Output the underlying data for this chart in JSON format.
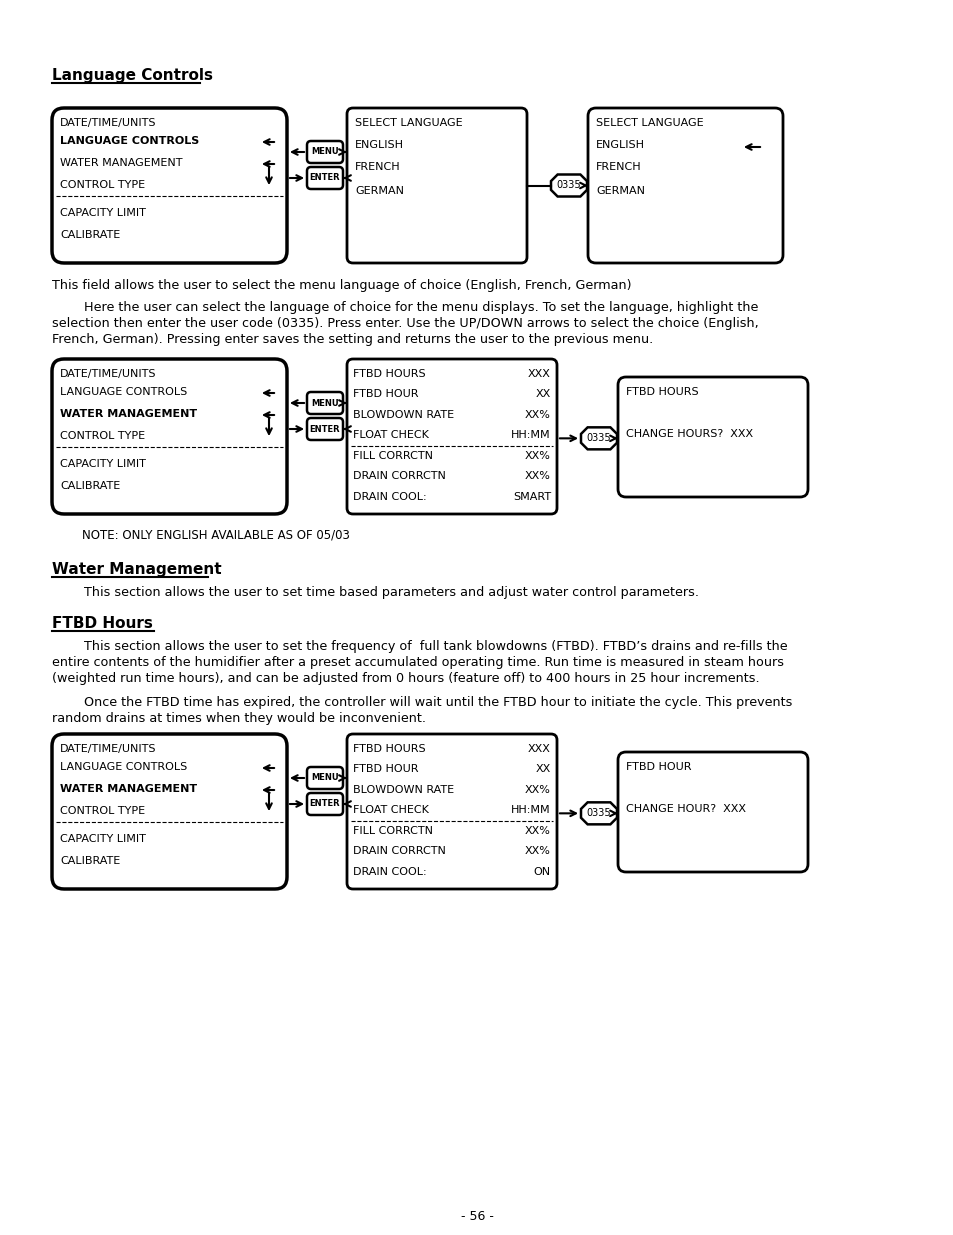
{
  "bg_color": "#ffffff",
  "title1": "Language Controls",
  "title2": "Water Management",
  "title3": "FTBD Hours",
  "para1": "This field allows the user to select the menu language of choice (English, French, German)",
  "para2a": "Here the user can select the language of choice for the menu displays. To set the language, highlight the",
  "para2b": "selection then enter the user code (0335). Press enter. Use the UP/DOWN arrows to select the choice (English,",
  "para2c": "French, German). Pressing enter saves the setting and returns the user to the previous menu.",
  "note1": "NOTE: ONLY ENGLISH AVAILABLE AS OF 05/03",
  "para3": "This section allows the user to set time based parameters and adjust water control parameters.",
  "para4a": "This section allows the user to set the frequency of  full tank blowdowns (FTBD). FTBD’s drains and re-fills the",
  "para4b": "entire contents of the humidifier after a preset accumulated operating time. Run time is measured in steam hours",
  "para4c": "(weighted run time hours), and can be adjusted from 0 hours (feature off) to 400 hours in 25 hour increments.",
  "para5a": "Once the FTBD time has expired, the controller will wait until the FTBD hour to initiate the cycle. This prevents",
  "para5b": "random drains at times when they would be inconvenient.",
  "page_num": "- 56 -",
  "menu_box_lines": [
    "DATE/TIME/UNITS",
    "LANGUAGE CONTROLS",
    "WATER MANAGEMENT",
    "CONTROL TYPE",
    "CAPACITY LIMIT",
    "CALIBRATE"
  ],
  "lang_box2_lines": [
    "SELECT LANGUAGE",
    "ENGLISH",
    "FRENCH",
    "GERMAN"
  ],
  "lang_box3_lines": [
    "SELECT LANGUAGE",
    "ENGLISH",
    "FRENCH",
    "GERMAN"
  ],
  "water_lines": [
    [
      "FTBD HOURS",
      "XXX"
    ],
    [
      "FTBD HOUR",
      "XX"
    ],
    [
      "BLOWDOWN RATE",
      "XX%"
    ],
    [
      "FLOAT CHECK",
      "HH:MM"
    ],
    [
      "FILL CORRCTN",
      "XX%"
    ],
    [
      "DRAIN CORRCTN",
      "XX%"
    ],
    [
      "DRAIN COOL:",
      "SMART"
    ]
  ],
  "ftbd_lines": [
    [
      "FTBD HOURS",
      "XXX"
    ],
    [
      "FTBD HOUR",
      "XX"
    ],
    [
      "BLOWDOWN RATE",
      "XX%"
    ],
    [
      "FLOAT CHECK",
      "HH:MM"
    ],
    [
      "FILL CORRCTN",
      "XX%"
    ],
    [
      "DRAIN CORRCTN",
      "XX%"
    ],
    [
      "DRAIN COOL:",
      "ON"
    ]
  ]
}
